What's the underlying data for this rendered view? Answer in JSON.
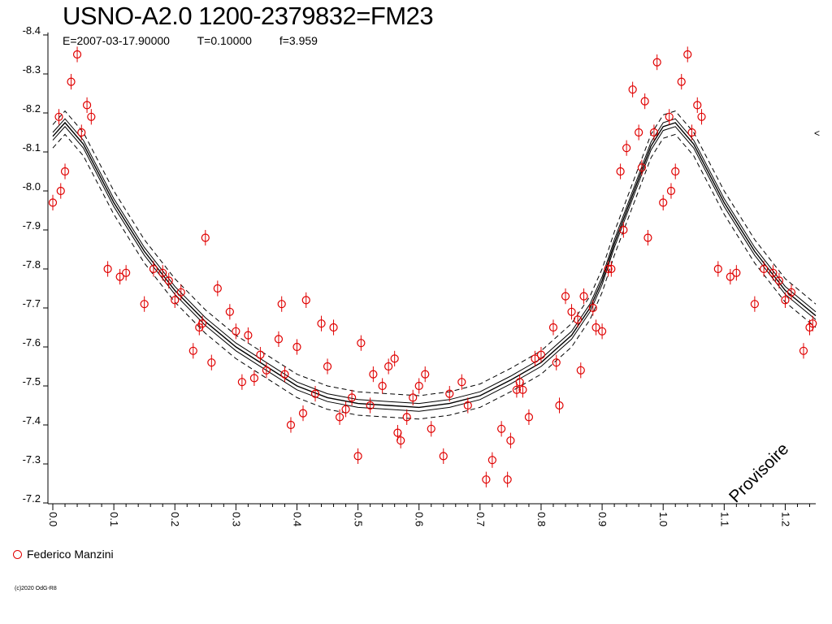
{
  "title": "USNO-A2.0 1200-2379832=FM23",
  "subtitle": {
    "epoch": "E=2007-03-17.90000",
    "period": "T=0.10000",
    "frequency": "f=3.959"
  },
  "legend": {
    "observer": "Federico Manzini",
    "marker_color": "#e00000"
  },
  "copyright": "(c)2020 OdG-R8",
  "watermark": "Provisoire",
  "edge_mark": "<",
  "chart_data": {
    "type": "scatter",
    "title": "USNO-A2.0 1200-2379832=FM23",
    "xlabel": "",
    "ylabel": "",
    "xlim": [
      0.0,
      1.25
    ],
    "ylim": [
      -8.4,
      -7.2
    ],
    "y_inverted": true,
    "x_ticks": [
      "0.0",
      "0.1",
      "0.2",
      "0.3",
      "0.4",
      "0.5",
      "0.6",
      "0.7",
      "0.8",
      "0.9",
      "1.0",
      "1.1",
      "1.2"
    ],
    "y_ticks": [
      "-8.4",
      "-8.3",
      "-8.2",
      "-8.1",
      "-8.0",
      "-7.9",
      "-7.8",
      "-7.7",
      "-7.6",
      "-7.5",
      "-7.4",
      "-7.3",
      "-7.2"
    ],
    "grid": false,
    "legend_position": "bottom-left",
    "series": [
      {
        "name": "Federico Manzini",
        "color": "#e00000",
        "error_bar": 0.02,
        "points": [
          [
            0.0,
            -7.97
          ],
          [
            0.01,
            -8.19
          ],
          [
            0.013,
            -8.0
          ],
          [
            0.02,
            -8.05
          ],
          [
            0.03,
            -8.28
          ],
          [
            0.04,
            -8.35
          ],
          [
            0.047,
            -8.15
          ],
          [
            0.056,
            -8.22
          ],
          [
            0.063,
            -8.19
          ],
          [
            0.09,
            -7.8
          ],
          [
            0.11,
            -7.78
          ],
          [
            0.12,
            -7.79
          ],
          [
            0.15,
            -7.71
          ],
          [
            0.165,
            -7.8
          ],
          [
            0.18,
            -7.79
          ],
          [
            0.19,
            -7.77
          ],
          [
            0.2,
            -7.72
          ],
          [
            0.21,
            -7.74
          ],
          [
            0.23,
            -7.59
          ],
          [
            0.24,
            -7.65
          ],
          [
            0.245,
            -7.66
          ],
          [
            0.25,
            -7.88
          ],
          [
            0.26,
            -7.56
          ],
          [
            0.27,
            -7.75
          ],
          [
            0.29,
            -7.69
          ],
          [
            0.3,
            -7.64
          ],
          [
            0.31,
            -7.51
          ],
          [
            0.32,
            -7.63
          ],
          [
            0.33,
            -7.52
          ],
          [
            0.34,
            -7.58
          ],
          [
            0.35,
            -7.54
          ],
          [
            0.37,
            -7.62
          ],
          [
            0.375,
            -7.71
          ],
          [
            0.38,
            -7.53
          ],
          [
            0.39,
            -7.4
          ],
          [
            0.4,
            -7.6
          ],
          [
            0.41,
            -7.43
          ],
          [
            0.415,
            -7.72
          ],
          [
            0.43,
            -7.48
          ],
          [
            0.44,
            -7.66
          ],
          [
            0.45,
            -7.55
          ],
          [
            0.46,
            -7.65
          ],
          [
            0.47,
            -7.42
          ],
          [
            0.48,
            -7.44
          ],
          [
            0.49,
            -7.47
          ],
          [
            0.5,
            -7.32
          ],
          [
            0.505,
            -7.61
          ],
          [
            0.52,
            -7.45
          ],
          [
            0.525,
            -7.53
          ],
          [
            0.54,
            -7.5
          ],
          [
            0.55,
            -7.55
          ],
          [
            0.56,
            -7.57
          ],
          [
            0.565,
            -7.38
          ],
          [
            0.57,
            -7.36
          ],
          [
            0.58,
            -7.42
          ],
          [
            0.59,
            -7.47
          ],
          [
            0.6,
            -7.5
          ],
          [
            0.61,
            -7.53
          ],
          [
            0.62,
            -7.39
          ],
          [
            0.64,
            -7.32
          ],
          [
            0.65,
            -7.48
          ],
          [
            0.67,
            -7.51
          ],
          [
            0.68,
            -7.45
          ],
          [
            0.71,
            -7.26
          ],
          [
            0.72,
            -7.31
          ],
          [
            0.735,
            -7.39
          ],
          [
            0.745,
            -7.26
          ],
          [
            0.75,
            -7.36
          ],
          [
            0.76,
            -7.49
          ],
          [
            0.765,
            -7.51
          ],
          [
            0.77,
            -7.49
          ],
          [
            0.78,
            -7.42
          ],
          [
            0.79,
            -7.57
          ],
          [
            0.8,
            -7.58
          ],
          [
            0.82,
            -7.65
          ],
          [
            0.825,
            -7.56
          ],
          [
            0.83,
            -7.45
          ],
          [
            0.84,
            -7.73
          ],
          [
            0.85,
            -7.69
          ],
          [
            0.86,
            -7.67
          ],
          [
            0.865,
            -7.54
          ],
          [
            0.87,
            -7.73
          ],
          [
            0.885,
            -7.7
          ],
          [
            0.89,
            -7.65
          ],
          [
            0.9,
            -7.64
          ],
          [
            0.91,
            -7.8
          ],
          [
            0.915,
            -7.8
          ],
          [
            0.93,
            -8.05
          ],
          [
            0.935,
            -7.9
          ],
          [
            0.94,
            -8.11
          ],
          [
            0.95,
            -8.26
          ],
          [
            0.96,
            -8.15
          ],
          [
            0.965,
            -8.06
          ],
          [
            0.97,
            -8.23
          ],
          [
            0.975,
            -7.88
          ],
          [
            0.985,
            -8.15
          ],
          [
            0.99,
            -8.33
          ],
          [
            1.0,
            -7.97
          ],
          [
            1.01,
            -8.19
          ],
          [
            1.013,
            -8.0
          ],
          [
            1.02,
            -8.05
          ],
          [
            1.03,
            -8.28
          ],
          [
            1.04,
            -8.35
          ],
          [
            1.047,
            -8.15
          ],
          [
            1.056,
            -8.22
          ],
          [
            1.063,
            -8.19
          ],
          [
            1.09,
            -7.8
          ],
          [
            1.11,
            -7.78
          ],
          [
            1.12,
            -7.79
          ],
          [
            1.15,
            -7.71
          ],
          [
            1.165,
            -7.8
          ],
          [
            1.18,
            -7.79
          ],
          [
            1.19,
            -7.77
          ],
          [
            1.2,
            -7.72
          ],
          [
            1.21,
            -7.74
          ],
          [
            1.23,
            -7.59
          ],
          [
            1.24,
            -7.65
          ],
          [
            1.245,
            -7.66
          ]
        ]
      }
    ],
    "fit": {
      "color": "#000000",
      "curve": [
        [
          0.0,
          -8.14
        ],
        [
          0.02,
          -8.175
        ],
        [
          0.05,
          -8.12
        ],
        [
          0.08,
          -8.03
        ],
        [
          0.1,
          -7.97
        ],
        [
          0.15,
          -7.845
        ],
        [
          0.2,
          -7.745
        ],
        [
          0.25,
          -7.665
        ],
        [
          0.3,
          -7.6
        ],
        [
          0.35,
          -7.55
        ],
        [
          0.4,
          -7.5
        ],
        [
          0.45,
          -7.47
        ],
        [
          0.5,
          -7.455
        ],
        [
          0.55,
          -7.45
        ],
        [
          0.6,
          -7.445
        ],
        [
          0.65,
          -7.455
        ],
        [
          0.7,
          -7.475
        ],
        [
          0.75,
          -7.515
        ],
        [
          0.8,
          -7.56
        ],
        [
          0.85,
          -7.63
        ],
        [
          0.88,
          -7.7
        ],
        [
          0.9,
          -7.77
        ],
        [
          0.92,
          -7.865
        ],
        [
          0.95,
          -7.99
        ],
        [
          0.98,
          -8.115
        ],
        [
          1.0,
          -8.165
        ],
        [
          1.02,
          -8.175
        ],
        [
          1.05,
          -8.12
        ],
        [
          1.08,
          -8.03
        ],
        [
          1.1,
          -7.97
        ],
        [
          1.15,
          -7.845
        ],
        [
          1.2,
          -7.745
        ],
        [
          1.25,
          -7.68
        ]
      ],
      "bands": [
        0.01,
        0.03
      ]
    }
  }
}
